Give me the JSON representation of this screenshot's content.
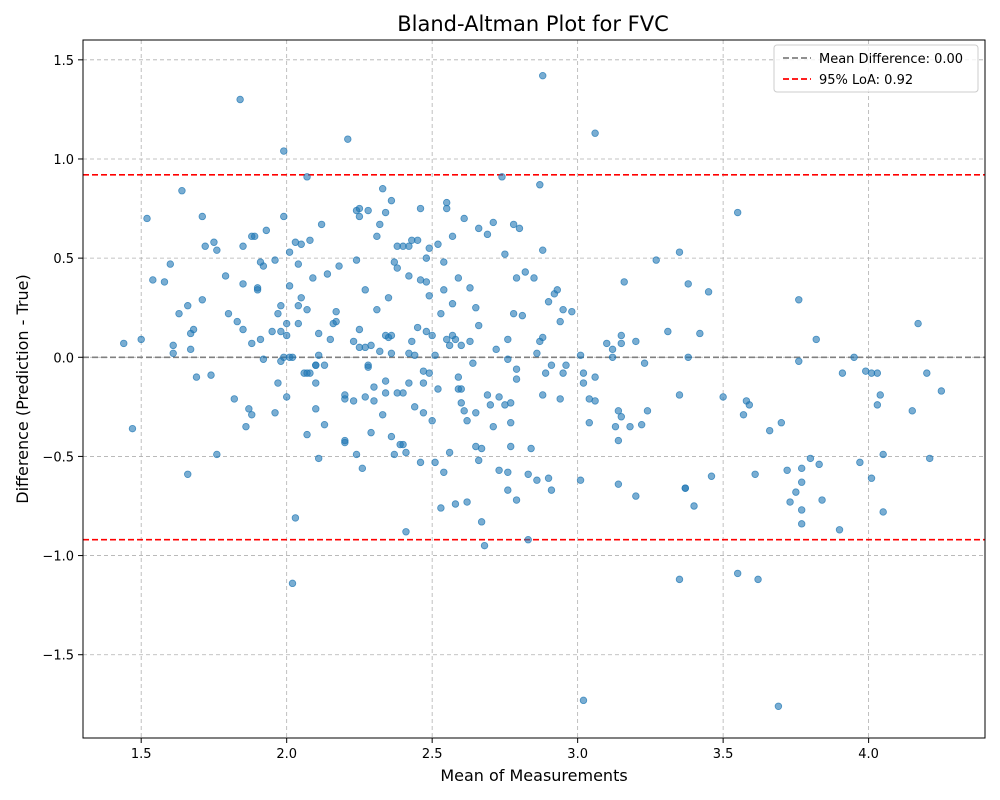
{
  "chart_data": {
    "type": "scatter",
    "title": "Bland-Altman Plot for FVC",
    "xlabel": "Mean of Measurements",
    "ylabel": "Difference (Prediction - True)",
    "xlim": [
      1.3,
      4.4
    ],
    "ylim": [
      -1.92,
      1.6
    ],
    "xticks": [
      1.5,
      2.0,
      2.5,
      3.0,
      3.5,
      4.0
    ],
    "xtick_labels": [
      "1.5",
      "2.0",
      "2.5",
      "3.0",
      "3.5",
      "4.0"
    ],
    "yticks": [
      -1.5,
      -1.0,
      -0.5,
      0.0,
      0.5,
      1.0,
      1.5
    ],
    "ytick_labels": [
      "−1.5",
      "−1.0",
      "−0.5",
      "0.0",
      "0.5",
      "1.0",
      "1.5"
    ],
    "grid": true,
    "legend_position": "top-right",
    "point_color": "#1f77b4",
    "reference_lines": [
      {
        "label": "Mean Difference: 0.00",
        "y": 0.0,
        "color": "#808080",
        "style": "dashed"
      },
      {
        "label": "95% LoA: 0.92",
        "y": 0.92,
        "color": "#ff0000",
        "style": "dashed"
      },
      {
        "label": "",
        "y": -0.92,
        "color": "#ff0000",
        "style": "dashed"
      }
    ],
    "points": [
      [
        1.44,
        0.07
      ],
      [
        1.47,
        -0.36
      ],
      [
        1.5,
        0.09
      ],
      [
        1.52,
        0.7
      ],
      [
        1.54,
        0.39
      ],
      [
        1.58,
        0.38
      ],
      [
        1.6,
        0.47
      ],
      [
        1.61,
        0.06
      ],
      [
        1.61,
        0.02
      ],
      [
        1.63,
        0.22
      ],
      [
        1.64,
        0.84
      ],
      [
        1.66,
        0.26
      ],
      [
        1.66,
        -0.59
      ],
      [
        1.67,
        0.04
      ],
      [
        1.67,
        0.12
      ],
      [
        1.68,
        0.14
      ],
      [
        1.69,
        -0.1
      ],
      [
        1.71,
        0.71
      ],
      [
        1.71,
        0.29
      ],
      [
        1.72,
        0.56
      ],
      [
        1.74,
        -0.09
      ],
      [
        1.75,
        0.58
      ],
      [
        1.76,
        0.54
      ],
      [
        1.76,
        -0.49
      ],
      [
        1.79,
        0.41
      ],
      [
        1.8,
        0.22
      ],
      [
        1.82,
        -0.21
      ],
      [
        1.83,
        0.18
      ],
      [
        1.84,
        1.3
      ],
      [
        1.85,
        0.37
      ],
      [
        1.85,
        0.14
      ],
      [
        1.85,
        0.56
      ],
      [
        1.86,
        -0.35
      ],
      [
        1.87,
        -0.26
      ],
      [
        1.88,
        -0.29
      ],
      [
        1.88,
        0.07
      ],
      [
        1.88,
        0.61
      ],
      [
        1.89,
        0.61
      ],
      [
        1.9,
        0.34
      ],
      [
        1.9,
        0.35
      ],
      [
        1.91,
        0.48
      ],
      [
        1.91,
        0.09
      ],
      [
        1.92,
        0.46
      ],
      [
        1.92,
        -0.01
      ],
      [
        1.93,
        0.64
      ],
      [
        1.95,
        0.13
      ],
      [
        1.96,
        0.49
      ],
      [
        1.96,
        -0.28
      ],
      [
        1.97,
        -0.13
      ],
      [
        1.97,
        0.22
      ],
      [
        1.98,
        0.26
      ],
      [
        1.98,
        0.13
      ],
      [
        1.98,
        -0.02
      ],
      [
        1.99,
        0.71
      ],
      [
        1.99,
        1.04
      ],
      [
        1.99,
        0.0
      ],
      [
        2.0,
        0.17
      ],
      [
        2.0,
        -0.2
      ],
      [
        2.0,
        0.11
      ],
      [
        2.01,
        0.53
      ],
      [
        2.01,
        0.0
      ],
      [
        2.01,
        0.36
      ],
      [
        2.02,
        -1.14
      ],
      [
        2.02,
        0.0
      ],
      [
        2.03,
        0.58
      ],
      [
        2.03,
        -0.81
      ],
      [
        2.04,
        0.26
      ],
      [
        2.04,
        0.17
      ],
      [
        2.04,
        0.47
      ],
      [
        2.05,
        0.57
      ],
      [
        2.05,
        0.3
      ],
      [
        2.06,
        -0.08
      ],
      [
        2.07,
        0.91
      ],
      [
        2.07,
        -0.08
      ],
      [
        2.07,
        0.24
      ],
      [
        2.07,
        -0.39
      ],
      [
        2.08,
        0.59
      ],
      [
        2.08,
        -0.08
      ],
      [
        2.09,
        0.4
      ],
      [
        2.1,
        -0.04
      ],
      [
        2.1,
        -0.04
      ],
      [
        2.1,
        -0.13
      ],
      [
        2.1,
        -0.26
      ],
      [
        2.11,
        0.12
      ],
      [
        2.11,
        0.01
      ],
      [
        2.11,
        -0.51
      ],
      [
        2.12,
        0.67
      ],
      [
        2.13,
        -0.34
      ],
      [
        2.13,
        -0.04
      ],
      [
        2.14,
        0.42
      ],
      [
        2.15,
        0.09
      ],
      [
        2.16,
        0.17
      ],
      [
        2.17,
        0.23
      ],
      [
        2.17,
        0.18
      ],
      [
        2.18,
        0.46
      ],
      [
        2.2,
        -0.42
      ],
      [
        2.2,
        -0.43
      ],
      [
        2.2,
        -0.21
      ],
      [
        2.2,
        -0.19
      ],
      [
        2.21,
        1.1
      ],
      [
        2.23,
        0.08
      ],
      [
        2.23,
        -0.22
      ],
      [
        2.24,
        0.74
      ],
      [
        2.24,
        0.49
      ],
      [
        2.24,
        -0.49
      ],
      [
        2.25,
        0.75
      ],
      [
        2.25,
        0.71
      ],
      [
        2.25,
        0.14
      ],
      [
        2.25,
        0.05
      ],
      [
        2.26,
        -0.56
      ],
      [
        2.27,
        -0.2
      ],
      [
        2.27,
        0.05
      ],
      [
        2.27,
        0.34
      ],
      [
        2.28,
        0.74
      ],
      [
        2.28,
        -0.05
      ],
      [
        2.28,
        -0.04
      ],
      [
        2.29,
        -0.38
      ],
      [
        2.29,
        0.06
      ],
      [
        2.3,
        -0.15
      ],
      [
        2.3,
        -0.22
      ],
      [
        2.31,
        0.24
      ],
      [
        2.31,
        0.61
      ],
      [
        2.32,
        0.03
      ],
      [
        2.32,
        0.67
      ],
      [
        2.33,
        0.85
      ],
      [
        2.33,
        -0.29
      ],
      [
        2.34,
        0.11
      ],
      [
        2.34,
        -0.18
      ],
      [
        2.34,
        0.73
      ],
      [
        2.34,
        -0.12
      ],
      [
        2.35,
        0.1
      ],
      [
        2.35,
        0.3
      ],
      [
        2.36,
        0.79
      ],
      [
        2.36,
        0.11
      ],
      [
        2.36,
        0.02
      ],
      [
        2.36,
        -0.4
      ],
      [
        2.37,
        -0.49
      ],
      [
        2.37,
        0.48
      ],
      [
        2.38,
        -0.18
      ],
      [
        2.38,
        0.56
      ],
      [
        2.38,
        0.45
      ],
      [
        2.39,
        -0.44
      ],
      [
        2.4,
        -0.44
      ],
      [
        2.4,
        -0.18
      ],
      [
        2.4,
        0.56
      ],
      [
        2.41,
        -0.88
      ],
      [
        2.41,
        -0.48
      ],
      [
        2.42,
        0.41
      ],
      [
        2.42,
        0.56
      ],
      [
        2.42,
        0.02
      ],
      [
        2.42,
        -0.13
      ],
      [
        2.43,
        0.08
      ],
      [
        2.43,
        0.59
      ],
      [
        2.44,
        0.01
      ],
      [
        2.44,
        -0.25
      ],
      [
        2.45,
        0.59
      ],
      [
        2.45,
        0.15
      ],
      [
        2.46,
        0.75
      ],
      [
        2.46,
        0.39
      ],
      [
        2.46,
        -0.53
      ],
      [
        2.47,
        -0.13
      ],
      [
        2.47,
        -0.07
      ],
      [
        2.47,
        -0.28
      ],
      [
        2.48,
        0.13
      ],
      [
        2.48,
        0.5
      ],
      [
        2.48,
        0.38
      ],
      [
        2.49,
        0.31
      ],
      [
        2.49,
        -0.08
      ],
      [
        2.49,
        0.55
      ],
      [
        2.5,
        -0.32
      ],
      [
        2.5,
        0.11
      ],
      [
        2.51,
        -0.53
      ],
      [
        2.51,
        0.01
      ],
      [
        2.52,
        0.57
      ],
      [
        2.52,
        -0.16
      ],
      [
        2.53,
        0.22
      ],
      [
        2.53,
        -0.76
      ],
      [
        2.54,
        0.48
      ],
      [
        2.54,
        0.34
      ],
      [
        2.54,
        -0.58
      ],
      [
        2.55,
        0.75
      ],
      [
        2.55,
        0.78
      ],
      [
        2.55,
        0.09
      ],
      [
        2.56,
        0.06
      ],
      [
        2.56,
        -0.48
      ],
      [
        2.57,
        0.11
      ],
      [
        2.57,
        0.61
      ],
      [
        2.57,
        0.27
      ],
      [
        2.58,
        0.09
      ],
      [
        2.58,
        -0.74
      ],
      [
        2.59,
        -0.16
      ],
      [
        2.59,
        -0.1
      ],
      [
        2.59,
        0.4
      ],
      [
        2.6,
        -0.23
      ],
      [
        2.6,
        0.06
      ],
      [
        2.6,
        -0.16
      ],
      [
        2.61,
        0.7
      ],
      [
        2.61,
        -0.27
      ],
      [
        2.62,
        -0.32
      ],
      [
        2.62,
        -0.73
      ],
      [
        2.63,
        0.08
      ],
      [
        2.63,
        0.35
      ],
      [
        2.64,
        -0.03
      ],
      [
        2.65,
        -0.28
      ],
      [
        2.65,
        0.25
      ],
      [
        2.65,
        -0.45
      ],
      [
        2.66,
        0.65
      ],
      [
        2.66,
        -0.52
      ],
      [
        2.66,
        0.16
      ],
      [
        2.67,
        -0.46
      ],
      [
        2.67,
        -0.83
      ],
      [
        2.68,
        -0.95
      ],
      [
        2.69,
        -0.19
      ],
      [
        2.69,
        0.62
      ],
      [
        2.7,
        -0.24
      ],
      [
        2.71,
        0.68
      ],
      [
        2.71,
        -0.35
      ],
      [
        2.72,
        0.04
      ],
      [
        2.73,
        -0.57
      ],
      [
        2.73,
        -0.2
      ],
      [
        2.74,
        0.91
      ],
      [
        2.75,
        0.52
      ],
      [
        2.75,
        -0.24
      ],
      [
        2.76,
        -0.58
      ],
      [
        2.76,
        -0.67
      ],
      [
        2.76,
        0.09
      ],
      [
        2.76,
        -0.01
      ],
      [
        2.77,
        -0.33
      ],
      [
        2.77,
        -0.23
      ],
      [
        2.77,
        -0.45
      ],
      [
        2.78,
        0.67
      ],
      [
        2.78,
        0.22
      ],
      [
        2.79,
        -0.11
      ],
      [
        2.79,
        0.4
      ],
      [
        2.79,
        -0.06
      ],
      [
        2.79,
        -0.72
      ],
      [
        2.8,
        0.65
      ],
      [
        2.81,
        0.21
      ],
      [
        2.82,
        0.43
      ],
      [
        2.83,
        -0.92
      ],
      [
        2.83,
        -0.59
      ],
      [
        2.84,
        -0.46
      ],
      [
        2.85,
        0.4
      ],
      [
        2.86,
        -0.62
      ],
      [
        2.86,
        0.02
      ],
      [
        2.87,
        0.08
      ],
      [
        2.87,
        0.87
      ],
      [
        2.88,
        1.42
      ],
      [
        2.88,
        0.1
      ],
      [
        2.88,
        0.54
      ],
      [
        2.88,
        -0.19
      ],
      [
        2.89,
        -0.08
      ],
      [
        2.9,
        -0.61
      ],
      [
        2.9,
        0.28
      ],
      [
        2.91,
        -0.67
      ],
      [
        2.91,
        -0.04
      ],
      [
        2.92,
        0.32
      ],
      [
        2.93,
        0.34
      ],
      [
        2.94,
        0.18
      ],
      [
        2.94,
        -0.21
      ],
      [
        2.95,
        -0.08
      ],
      [
        2.95,
        0.24
      ],
      [
        2.96,
        -0.04
      ],
      [
        2.98,
        0.23
      ],
      [
        3.01,
        0.01
      ],
      [
        3.01,
        -0.62
      ],
      [
        3.02,
        -0.13
      ],
      [
        3.02,
        -1.73
      ],
      [
        3.02,
        -0.08
      ],
      [
        3.04,
        -0.33
      ],
      [
        3.04,
        -0.21
      ],
      [
        3.06,
        1.13
      ],
      [
        3.06,
        -0.1
      ],
      [
        3.06,
        -0.22
      ],
      [
        3.1,
        0.07
      ],
      [
        3.12,
        0.04
      ],
      [
        3.12,
        0.0
      ],
      [
        3.13,
        -0.35
      ],
      [
        3.14,
        -0.27
      ],
      [
        3.14,
        -0.64
      ],
      [
        3.14,
        -0.42
      ],
      [
        3.15,
        -0.3
      ],
      [
        3.15,
        0.11
      ],
      [
        3.15,
        0.07
      ],
      [
        3.16,
        0.38
      ],
      [
        3.18,
        -0.35
      ],
      [
        3.2,
        0.08
      ],
      [
        3.2,
        -0.7
      ],
      [
        3.22,
        -0.34
      ],
      [
        3.23,
        -0.03
      ],
      [
        3.24,
        -0.27
      ],
      [
        3.27,
        0.49
      ],
      [
        3.31,
        0.13
      ],
      [
        3.35,
        -0.19
      ],
      [
        3.35,
        0.53
      ],
      [
        3.35,
        -1.12
      ],
      [
        3.37,
        -0.66
      ],
      [
        3.37,
        -0.66
      ],
      [
        3.38,
        0.37
      ],
      [
        3.38,
        0.0
      ],
      [
        3.4,
        -0.75
      ],
      [
        3.42,
        0.12
      ],
      [
        3.45,
        0.33
      ],
      [
        3.46,
        -0.6
      ],
      [
        3.5,
        -0.2
      ],
      [
        3.55,
        0.73
      ],
      [
        3.55,
        -1.09
      ],
      [
        3.57,
        -0.29
      ],
      [
        3.58,
        -0.22
      ],
      [
        3.59,
        -0.24
      ],
      [
        3.61,
        -0.59
      ],
      [
        3.62,
        -1.12
      ],
      [
        3.66,
        -0.37
      ],
      [
        3.69,
        -1.76
      ],
      [
        3.7,
        -0.33
      ],
      [
        3.72,
        -0.57
      ],
      [
        3.73,
        -0.73
      ],
      [
        3.75,
        -0.68
      ],
      [
        3.76,
        -0.02
      ],
      [
        3.76,
        0.29
      ],
      [
        3.77,
        -0.84
      ],
      [
        3.77,
        -0.77
      ],
      [
        3.77,
        -0.56
      ],
      [
        3.77,
        -0.63
      ],
      [
        3.8,
        -0.51
      ],
      [
        3.82,
        0.09
      ],
      [
        3.83,
        -0.54
      ],
      [
        3.84,
        -0.72
      ],
      [
        3.9,
        -0.87
      ],
      [
        3.91,
        -0.08
      ],
      [
        3.95,
        0.0
      ],
      [
        3.97,
        -0.53
      ],
      [
        3.99,
        -0.07
      ],
      [
        4.01,
        -0.08
      ],
      [
        4.01,
        -0.61
      ],
      [
        4.03,
        -0.08
      ],
      [
        4.03,
        -0.24
      ],
      [
        4.04,
        -0.19
      ],
      [
        4.05,
        -0.49
      ],
      [
        4.05,
        -0.78
      ],
      [
        4.15,
        -0.27
      ],
      [
        4.17,
        0.17
      ],
      [
        4.2,
        -0.08
      ],
      [
        4.21,
        -0.51
      ],
      [
        4.25,
        -0.17
      ]
    ]
  }
}
